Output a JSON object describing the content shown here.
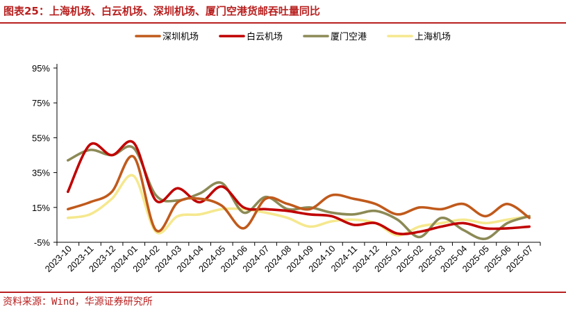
{
  "title": "图表25：上海机场、白云机场、深圳机场、厦门空港货邮吞吐量同比",
  "source": "资料来源：Wind，华源证券研究所",
  "chart_data": {
    "type": "line",
    "title": "图表25：上海机场、白云机场、深圳机场、厦门空港货邮吞吐量同比",
    "xlabel": "",
    "ylabel": "",
    "x": [
      "2023-10",
      "2023-11",
      "2023-12",
      "2024-01",
      "2024-02",
      "2024-03",
      "2024-04",
      "2024-05",
      "2024-06",
      "2024-07",
      "2024-08",
      "2024-09",
      "2024-10",
      "2024-11",
      "2024-12",
      "2025-01",
      "2025-02",
      "2025-03",
      "2025-04",
      "2025-05",
      "2025-06",
      "2025-07"
    ],
    "ylim": [
      -5,
      95
    ],
    "yticks": [
      -5,
      15,
      35,
      55,
      75,
      95
    ],
    "ytick_labels": [
      "-5%",
      "15%",
      "35%",
      "55%",
      "75%",
      "95%"
    ],
    "grid": false,
    "legend_position": "top",
    "series": [
      {
        "name": "深圳机场",
        "color": "#c05a1c",
        "values": [
          14,
          18,
          24,
          44,
          2,
          18,
          20,
          16,
          3,
          20,
          17,
          14,
          22,
          20,
          17,
          11,
          15,
          14,
          17,
          10,
          17,
          9
        ]
      },
      {
        "name": "白云机场",
        "color": "#c00000",
        "values": [
          24,
          51,
          45,
          52,
          19,
          26,
          18,
          27,
          15,
          14,
          13,
          11,
          10,
          5,
          6,
          0,
          1,
          4,
          6,
          3,
          3,
          4
        ]
      },
      {
        "name": "厦门空港",
        "color": "#8c8a56",
        "values": [
          42,
          48,
          45,
          49,
          22,
          19,
          23,
          29,
          12,
          21,
          14,
          15,
          12,
          11,
          13,
          8,
          -2,
          9,
          2,
          -3,
          6,
          10
        ]
      },
      {
        "name": "上海机场",
        "color": "#f5e88e",
        "values": [
          9,
          11,
          20,
          33,
          1,
          10,
          11,
          14,
          14,
          12,
          9,
          4,
          7,
          8,
          6,
          -1,
          4,
          6,
          8,
          6,
          8,
          10
        ]
      }
    ]
  }
}
